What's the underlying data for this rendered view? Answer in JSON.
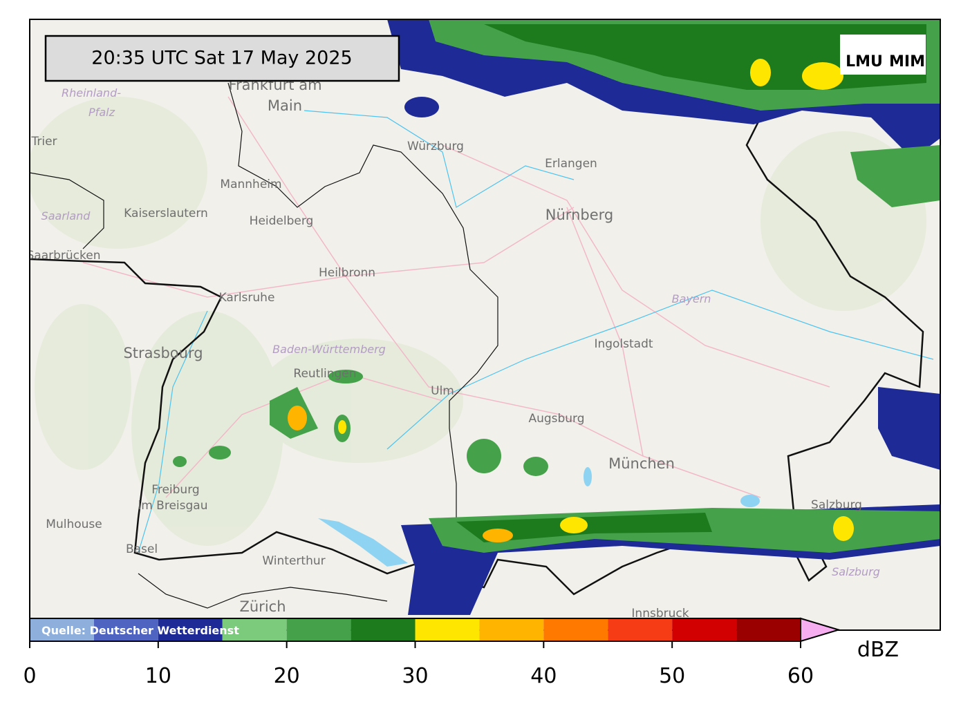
{
  "map": {
    "timestamp": "20:35 UTC  Sat 17 May 2025",
    "logo": [
      "LMU",
      "MIM"
    ],
    "labels": [
      "Frankfurt am",
      "Main",
      "Rheinland-",
      "Pfalz",
      "Trier",
      "Würzburg",
      "Erlangen",
      "Nürnberg",
      "Mannheim",
      "Saarland",
      "Kaiserslautern",
      "Heidelberg",
      "Saarbrücken",
      "Heilbronn",
      "Karlsruhe",
      "Bayern",
      "Ingolstadt",
      "Strasbourg",
      "Baden-Württemberg",
      "Reutlingen",
      "Ulm",
      "Augsburg",
      "München",
      "Freiburg",
      "im Breisgau",
      "Mulhouse",
      "Basel",
      "Winterthur",
      "Zürich",
      "Innsbruck",
      "Salzburg",
      "Salzburg"
    ]
  },
  "colorbar": {
    "source": "Quelle: Deutscher Wetterdienst",
    "unit": "dBZ",
    "bounds": [
      0,
      5,
      10,
      15,
      20,
      25,
      30,
      35,
      40,
      45,
      50,
      55,
      60
    ],
    "colors": [
      "#8eafdb",
      "#4f63c0",
      "#1e2a96",
      "#7ccb7c",
      "#46a24a",
      "#1d7a1d",
      "#ffe600",
      "#ffb400",
      "#ff7800",
      "#f53c14",
      "#d20000",
      "#9b0000"
    ],
    "over_color": "#f7aef0",
    "ticks": [
      0,
      10,
      20,
      30,
      40,
      50,
      60
    ]
  }
}
